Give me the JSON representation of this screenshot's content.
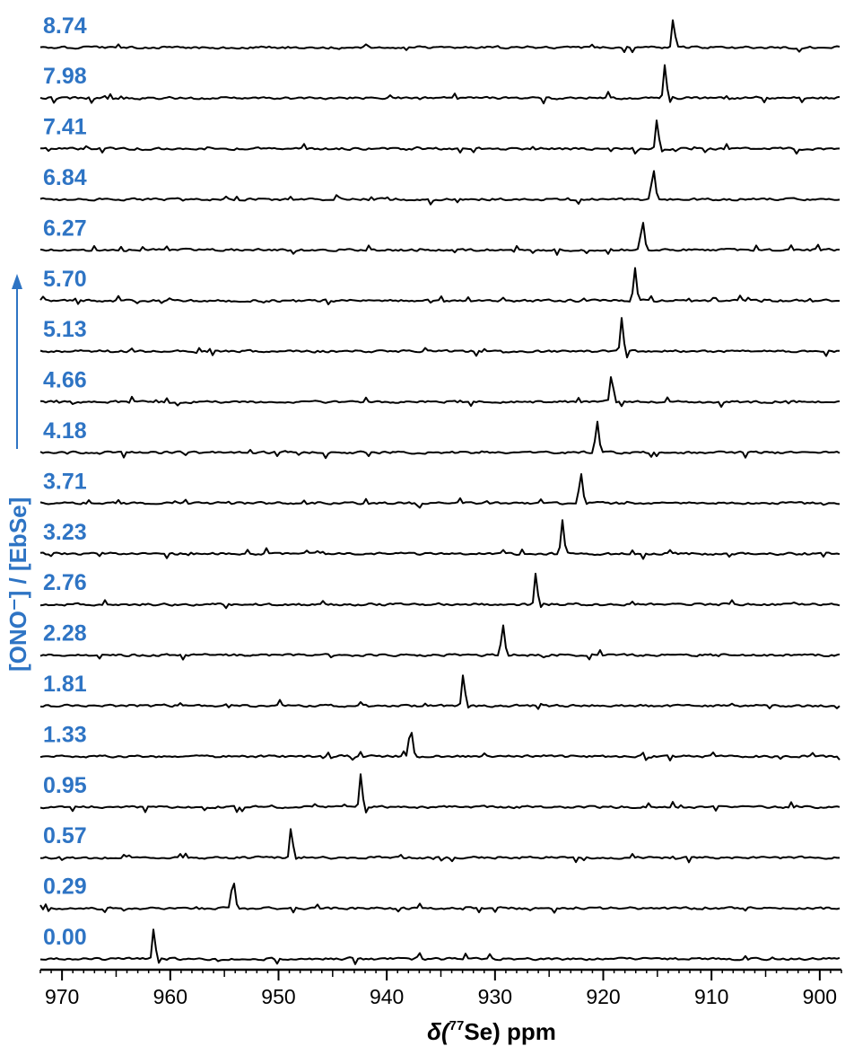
{
  "chart_data": {
    "type": "line",
    "title": "",
    "xlabel": {
      "prefix": "δ(",
      "superscript": "77",
      "element": "Se",
      "suffix": ") ppm"
    },
    "ylabel": "[ONO⁻] / [EbSe]",
    "xlim": [
      972,
      898
    ],
    "x_reversed": true,
    "x_ticks": [
      970,
      960,
      950,
      940,
      930,
      920,
      910,
      900
    ],
    "grid": false,
    "legend": "none",
    "colors": {
      "labels": "#2E74C4",
      "traces": "#000000",
      "axis": "#000000"
    },
    "series": [
      {
        "name": "0.00",
        "peak_ppm": 961.5
      },
      {
        "name": "0.29",
        "peak_ppm": 954.2
      },
      {
        "name": "0.57",
        "peak_ppm": 948.8
      },
      {
        "name": "0.95",
        "peak_ppm": 942.4
      },
      {
        "name": "1.33",
        "peak_ppm": 937.8
      },
      {
        "name": "1.81",
        "peak_ppm": 932.9
      },
      {
        "name": "2.28",
        "peak_ppm": 929.3
      },
      {
        "name": "2.76",
        "peak_ppm": 926.2
      },
      {
        "name": "3.23",
        "peak_ppm": 923.8
      },
      {
        "name": "3.71",
        "peak_ppm": 922.1
      },
      {
        "name": "4.18",
        "peak_ppm": 920.6
      },
      {
        "name": "4.66",
        "peak_ppm": 919.2
      },
      {
        "name": "5.13",
        "peak_ppm": 918.3
      },
      {
        "name": "5.70",
        "peak_ppm": 917.1
      },
      {
        "name": "6.27",
        "peak_ppm": 916.4
      },
      {
        "name": "6.84",
        "peak_ppm": 915.4
      },
      {
        "name": "7.41",
        "peak_ppm": 915.0
      },
      {
        "name": "7.98",
        "peak_ppm": 914.3
      },
      {
        "name": "8.74",
        "peak_ppm": 913.5
      }
    ]
  }
}
